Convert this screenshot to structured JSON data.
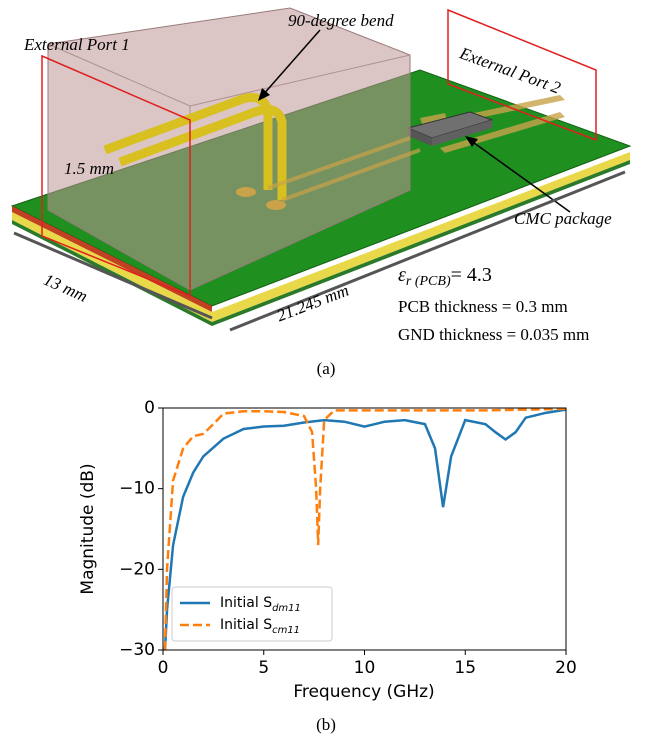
{
  "figure_a": {
    "port1": "External Port 1",
    "bend": "90-degree bend",
    "port2": "External Port 2",
    "pitch": "1.5 mm",
    "package": "CMC package",
    "width": "13 mm",
    "length": "21.245 mm",
    "eps_symbol": "ε",
    "eps_subscript": "r (PCB)",
    "eps_value": "= 4.3",
    "pcb_thickness": "PCB thickness = 0.3 mm",
    "gnd_thickness": "GND thickness = 0.035 mm",
    "caption": "(a)"
  },
  "chart_data": {
    "type": "line",
    "xlabel": "Frequency (GHz)",
    "ylabel": "Magnitude (dB)",
    "xlim": [
      0,
      20
    ],
    "xticks": [
      0,
      5,
      10,
      15,
      20
    ],
    "ylim": [
      -30,
      0
    ],
    "yticks": [
      {
        "value": -30,
        "label": "−30"
      },
      {
        "value": -20,
        "label": "−20"
      },
      {
        "value": -10,
        "label": "−10"
      },
      0
    ],
    "legend": "lower left",
    "series": [
      {
        "name": "Initial S",
        "subscript": "dm11",
        "color": "#1f77b4",
        "dash": false,
        "x": [
          0.1,
          0.2,
          0.5,
          1,
          1.5,
          2,
          3,
          4,
          5,
          6,
          7,
          8,
          9,
          10,
          11,
          12,
          13,
          13.5,
          13.9,
          14.3,
          15,
          16,
          16.5,
          17,
          17.5,
          18,
          19,
          20
        ],
        "values": [
          -30,
          -25,
          -17,
          -11,
          -8,
          -6,
          -3.8,
          -2.6,
          -2.3,
          -2.2,
          -1.8,
          -1.5,
          -1.7,
          -2.3,
          -1.7,
          -1.5,
          -2,
          -5,
          -12.3,
          -6,
          -1.5,
          -2,
          -3,
          -3.9,
          -3,
          -1.2,
          -0.6,
          -0.2
        ]
      },
      {
        "name": "Initial S",
        "subscript": "cm11",
        "color": "#ff7f0e",
        "dash": true,
        "x": [
          0.1,
          0.2,
          0.5,
          1,
          1.5,
          2,
          2.5,
          3,
          4,
          5,
          6,
          7,
          7.4,
          7.6,
          7.7,
          7.8,
          8,
          8.5,
          10,
          12,
          14,
          16,
          18,
          20
        ],
        "values": [
          -30,
          -20,
          -9,
          -5,
          -3.5,
          -3.2,
          -2,
          -0.7,
          -0.4,
          -0.4,
          -0.5,
          -1,
          -3,
          -10,
          -17,
          -10,
          -1.5,
          -0.3,
          -0.3,
          -0.3,
          -0.3,
          -0.3,
          -0.2,
          -0.1
        ]
      }
    ]
  },
  "caption_b": "(b)"
}
